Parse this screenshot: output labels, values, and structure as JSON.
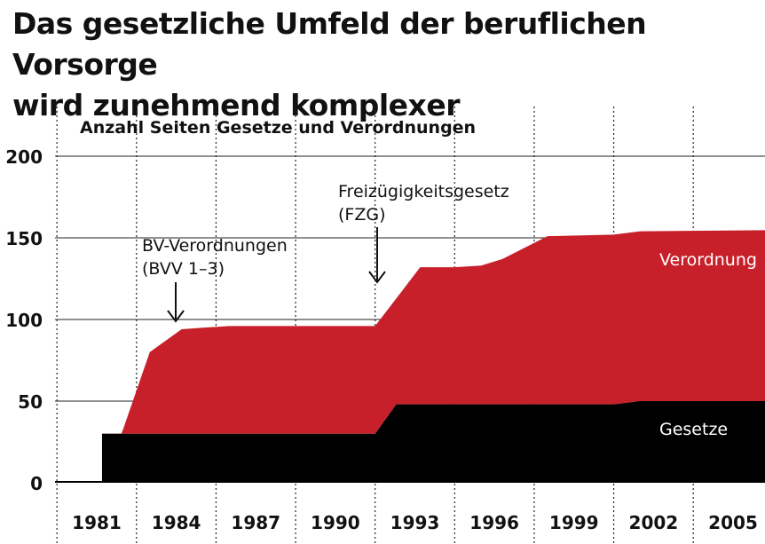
{
  "title_line1": "Das gesetzliche Umfeld der beruflichen Vorsorge",
  "title_line2": "wird zunehmend komplexer",
  "chart_data": {
    "type": "area",
    "stacked": true,
    "title": "Das gesetzliche Umfeld der beruflichen Vorsorge wird zunehmend komplexer",
    "ylabel": "Anzahl Seiten Gesetze und Verordnungen",
    "xlabel": "",
    "ylim": [
      0,
      200
    ],
    "yticks": [
      0,
      50,
      100,
      150,
      200
    ],
    "xticks": [
      "1981",
      "1984",
      "1987",
      "1990",
      "1993",
      "1996",
      "1999",
      "2002",
      "2005"
    ],
    "grid": true,
    "series": [
      {
        "name": "Gesetze",
        "color": "#000000",
        "points": [
          [
            1980.7,
            0
          ],
          [
            1981.2,
            0
          ],
          [
            1981.2,
            30
          ],
          [
            1982,
            30
          ],
          [
            1989,
            30
          ],
          [
            1991.5,
            30
          ],
          [
            1992.3,
            48
          ],
          [
            2000.5,
            48
          ],
          [
            2001.5,
            50
          ],
          [
            2008.6,
            50
          ]
        ]
      },
      {
        "name": "Verordnung",
        "color": "#c8202a",
        "points": [
          [
            1981.2,
            0
          ],
          [
            1982,
            3
          ],
          [
            1983,
            50
          ],
          [
            1984.2,
            64
          ],
          [
            1985,
            65
          ],
          [
            1986,
            66
          ],
          [
            1988,
            66
          ],
          [
            1991.5,
            66
          ],
          [
            1993.2,
            84
          ],
          [
            1994.5,
            84
          ],
          [
            1995.5,
            85
          ],
          [
            1996.3,
            89
          ],
          [
            1998,
            103
          ],
          [
            2000.5,
            104
          ],
          [
            2001.5,
            104
          ],
          [
            2008.6,
            105
          ]
        ]
      }
    ],
    "annotations": [
      {
        "text_line1": "BV-Verordnungen",
        "text_line2": "(BVV 1–3)",
        "year": 1984.0,
        "value": 97
      },
      {
        "text_line1": "Freizügigkeitsgesetz",
        "text_line2": "(FZG)",
        "year": 1992.3,
        "value": 120
      }
    ],
    "series_labels": {
      "verordnung": "Verordnung",
      "gesetze": "Gesetze"
    }
  }
}
